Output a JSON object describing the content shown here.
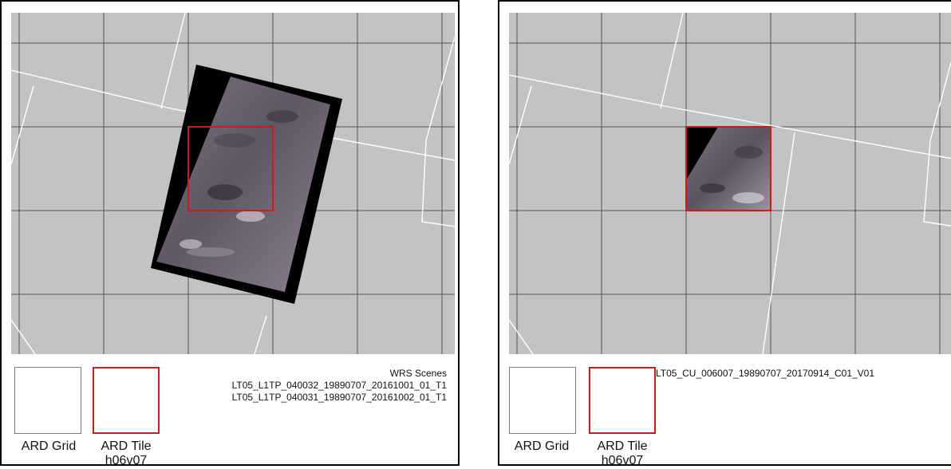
{
  "colors": {
    "map_background": "#c3c3c3",
    "grid_line": "#555555",
    "wrs_line": "#ffffff",
    "tile_outline": "#cc1b1b",
    "scene_fill": "#6f6876",
    "nodata_fill": "#000000"
  },
  "left_panel": {
    "legend": {
      "grid_label": "ARD Grid",
      "tile_label": "ARD Tile",
      "tile_id": "h06v07"
    },
    "scenes_title": "WRS Scenes",
    "scenes": [
      "LT05_L1TP_040032_19890707_20161001_01_T1",
      "LT05_L1TP_040031_19890707_20161002_01_T1"
    ]
  },
  "right_panel": {
    "legend": {
      "grid_label": "ARD Grid",
      "tile_label": "ARD Tile",
      "tile_id": "h06v07"
    },
    "scene": "LT05_CU_006007_19890707_20170914_C01_V01"
  }
}
